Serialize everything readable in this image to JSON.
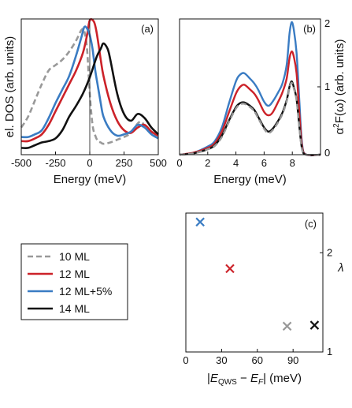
{
  "colors": {
    "10 ML": "#999999",
    "12 ML": "#cc2229",
    "12 ML+5%": "#3a7cc3",
    "14 ML": "#111111"
  },
  "chart_data": [
    {
      "panel": "(a)",
      "type": "line",
      "xlabel": "Energy (meV)",
      "ylabel": "el. DOS (arb. units)",
      "xlim": [
        -500,
        500
      ],
      "ylim": [
        0,
        1
      ],
      "xticks": [
        -500,
        -250,
        0,
        250,
        500
      ],
      "xticklabels": [
        "-500",
        "-250",
        "0",
        "250",
        "500"
      ],
      "yticks": [],
      "vline_x": 0,
      "series": [
        {
          "name": "10 ML",
          "style": "dashed",
          "x": [
            -500,
            -450,
            -400,
            -350,
            -300,
            -250,
            -200,
            -150,
            -100,
            -60,
            -40,
            -20,
            0,
            20,
            40,
            60,
            80,
            100,
            150,
            200,
            250,
            300,
            350,
            380,
            420,
            500
          ],
          "y": [
            0.2,
            0.28,
            0.4,
            0.52,
            0.62,
            0.66,
            0.7,
            0.76,
            0.84,
            0.92,
            0.91,
            0.78,
            0.45,
            0.22,
            0.14,
            0.1,
            0.09,
            0.08,
            0.09,
            0.11,
            0.13,
            0.16,
            0.23,
            0.24,
            0.18,
            0.12
          ]
        },
        {
          "name": "12 ML",
          "style": "solid",
          "x": [
            -500,
            -450,
            -400,
            -350,
            -300,
            -250,
            -200,
            -150,
            -100,
            -50,
            -20,
            0,
            30,
            50,
            80,
            100,
            150,
            200,
            250,
            300,
            350,
            400,
            450,
            500
          ],
          "y": [
            0.1,
            0.1,
            0.12,
            0.15,
            0.22,
            0.32,
            0.42,
            0.52,
            0.62,
            0.75,
            0.88,
            0.99,
            0.98,
            0.9,
            0.7,
            0.58,
            0.38,
            0.25,
            0.18,
            0.16,
            0.2,
            0.22,
            0.17,
            0.14
          ]
        },
        {
          "name": "12 ML+5%",
          "style": "solid",
          "x": [
            -500,
            -450,
            -400,
            -350,
            -300,
            -250,
            -200,
            -150,
            -100,
            -60,
            -40,
            -20,
            0,
            20,
            40,
            60,
            80,
            100,
            150,
            200,
            250,
            300,
            350,
            400,
            450,
            500
          ],
          "y": [
            0.13,
            0.13,
            0.15,
            0.18,
            0.27,
            0.38,
            0.48,
            0.58,
            0.73,
            0.87,
            0.94,
            0.93,
            0.88,
            0.78,
            0.62,
            0.5,
            0.38,
            0.28,
            0.18,
            0.14,
            0.15,
            0.17,
            0.22,
            0.2,
            0.15,
            0.12
          ]
        },
        {
          "name": "14 ML",
          "style": "solid",
          "x": [
            -500,
            -450,
            -400,
            -350,
            -300,
            -250,
            -200,
            -150,
            -100,
            -50,
            0,
            50,
            80,
            100,
            130,
            150,
            200,
            250,
            300,
            350,
            400,
            450,
            500
          ],
          "y": [
            0.05,
            0.05,
            0.07,
            0.09,
            0.1,
            0.12,
            0.18,
            0.28,
            0.36,
            0.45,
            0.57,
            0.72,
            0.78,
            0.82,
            0.78,
            0.7,
            0.45,
            0.3,
            0.25,
            0.3,
            0.27,
            0.2,
            0.15
          ]
        }
      ]
    },
    {
      "panel": "(b)",
      "type": "line",
      "xlabel": "Energy (meV)",
      "ylabel": "α²F(ω) (arb. units)",
      "xlim": [
        0,
        10
      ],
      "ylim": [
        0,
        2
      ],
      "xticks": [
        0,
        2,
        4,
        6,
        8
      ],
      "xticklabels": [
        "0",
        "2",
        "4",
        "6",
        "8"
      ],
      "yticks": [
        0,
        1,
        2
      ],
      "yticklabels": [
        "0",
        "1",
        "2"
      ],
      "series": [
        {
          "name": "12 ML+5%",
          "style": "solid",
          "x": [
            0,
            1,
            2,
            2.5,
            3,
            3.5,
            4,
            4.3,
            4.6,
            5,
            5.3,
            5.6,
            6,
            6.3,
            6.6,
            7,
            7.3,
            7.6,
            7.8,
            7.95,
            8.1,
            8.3,
            8.5,
            8.7,
            9,
            10
          ],
          "y": [
            0,
            0.03,
            0.12,
            0.2,
            0.4,
            0.75,
            1.08,
            1.18,
            1.2,
            1.12,
            1.05,
            0.95,
            0.78,
            0.72,
            0.78,
            0.92,
            1.05,
            1.32,
            1.78,
            1.95,
            1.85,
            1.5,
            0.8,
            0.15,
            0,
            0
          ]
        },
        {
          "name": "12 ML",
          "style": "solid",
          "x": [
            0,
            1,
            2,
            2.5,
            3,
            3.5,
            4,
            4.3,
            4.6,
            5,
            5.3,
            5.6,
            6,
            6.3,
            6.6,
            7,
            7.3,
            7.6,
            7.8,
            7.95,
            8.1,
            8.3,
            8.5,
            8.7,
            9,
            10
          ],
          "y": [
            0,
            0.03,
            0.1,
            0.17,
            0.34,
            0.62,
            0.9,
            1.0,
            1.03,
            0.96,
            0.9,
            0.8,
            0.63,
            0.58,
            0.62,
            0.78,
            0.92,
            1.12,
            1.42,
            1.52,
            1.45,
            1.2,
            0.62,
            0.12,
            0,
            0
          ]
        },
        {
          "name": "14 ML",
          "style": "solid",
          "x": [
            0,
            1,
            2,
            2.5,
            3,
            3.5,
            4,
            4.3,
            4.6,
            5,
            5.3,
            5.6,
            6,
            6.3,
            6.6,
            7,
            7.3,
            7.6,
            7.8,
            7.95,
            8.1,
            8.3,
            8.5,
            8.7,
            9,
            10
          ],
          "y": [
            0,
            0.02,
            0.08,
            0.14,
            0.28,
            0.5,
            0.7,
            0.76,
            0.77,
            0.72,
            0.66,
            0.55,
            0.4,
            0.34,
            0.38,
            0.5,
            0.62,
            0.8,
            1.0,
            1.08,
            1.0,
            0.82,
            0.42,
            0.08,
            0,
            0
          ]
        },
        {
          "name": "10 ML",
          "style": "dashed",
          "x": [
            0,
            1,
            2,
            2.5,
            3,
            3.5,
            4,
            4.3,
            4.6,
            5,
            5.3,
            5.6,
            6,
            6.3,
            6.6,
            7,
            7.3,
            7.6,
            7.8,
            7.95,
            8.1,
            8.3,
            8.5,
            8.7,
            9,
            10
          ],
          "y": [
            0,
            0.02,
            0.08,
            0.13,
            0.26,
            0.48,
            0.68,
            0.74,
            0.75,
            0.7,
            0.64,
            0.53,
            0.38,
            0.32,
            0.36,
            0.48,
            0.6,
            0.78,
            0.98,
            1.06,
            0.98,
            0.8,
            0.4,
            0.07,
            0,
            0
          ]
        }
      ]
    },
    {
      "panel": "(c)",
      "type": "scatter",
      "xlabel": "|E_QWS − E_F| (meV)",
      "ylabel": "λ",
      "xlim": [
        0,
        115
      ],
      "ylim": [
        1,
        2.4
      ],
      "xticks": [
        0,
        30,
        60,
        90
      ],
      "xticklabels": [
        "0",
        "30",
        "60",
        "90"
      ],
      "yticks": [
        1,
        2
      ],
      "yticklabels": [
        "1",
        "2"
      ],
      "points": [
        {
          "name": "12 ML+5%",
          "x": 12,
          "y": 2.31
        },
        {
          "name": "12 ML",
          "x": 37,
          "y": 1.84
        },
        {
          "name": "10 ML",
          "x": 85,
          "y": 1.26
        },
        {
          "name": "14 ML",
          "x": 108,
          "y": 1.27
        }
      ]
    }
  ],
  "legend": [
    {
      "name": "10 ML",
      "style": "dashed"
    },
    {
      "name": "12 ML",
      "style": "solid"
    },
    {
      "name": "12 ML+5%",
      "style": "solid"
    },
    {
      "name": "14 ML",
      "style": "solid"
    }
  ],
  "labels": {
    "c_xlabel_pre": "|",
    "c_xlabel_E1": "E",
    "c_xlabel_sub1": "QWS",
    "c_xlabel_mid": " − ",
    "c_xlabel_E2": "E",
    "c_xlabel_sub2": "F",
    "c_xlabel_post": "| (meV)",
    "b_ylabel_pre": "α",
    "b_ylabel_sup": "2",
    "b_ylabel_post": "F(ω) (arb. units)"
  }
}
